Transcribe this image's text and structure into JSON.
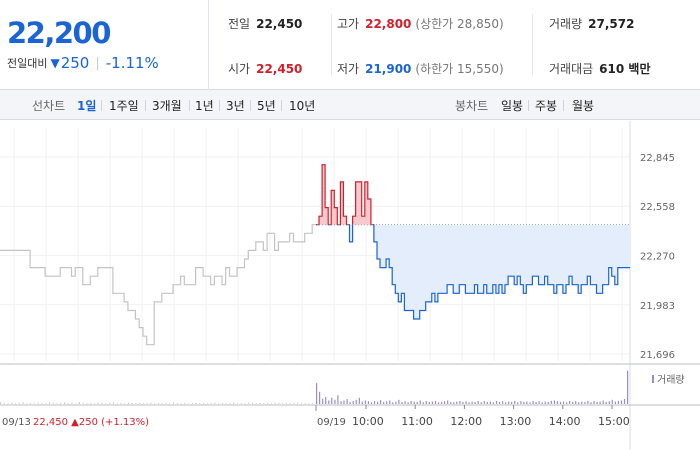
{
  "quote": {
    "price": "22,200",
    "change_label": "전일대비",
    "change_arrow": "▼",
    "change_value": "250",
    "change_pct": "-1.11%",
    "prev_close": {
      "label": "전일",
      "value": "22,450"
    },
    "high": {
      "label": "고가",
      "value": "22,800",
      "limit_note": "(상한가 28,850)"
    },
    "volume": {
      "label": "거래량",
      "value": "27,572"
    },
    "open": {
      "label": "시가",
      "value": "22,450"
    },
    "low": {
      "label": "저가",
      "value": "21,900",
      "limit_note": "(하한가 15,550)"
    },
    "amount": {
      "label": "거래대금",
      "value": "610 백만"
    }
  },
  "tabs": {
    "line_label": "선차트",
    "line_items": [
      "1일",
      "1주일",
      "3개월",
      "1년",
      "3년",
      "5년",
      "10년"
    ],
    "active_line": "1일",
    "candle_label": "봉차트",
    "candle_items": [
      "일봉",
      "주봉",
      "월봉"
    ]
  },
  "chart_data": {
    "type": "line",
    "y_ticks": [
      "22,845",
      "22,558",
      "22,270",
      "21,983",
      "21,696"
    ],
    "x_labels": [
      "10:00",
      "11:00",
      "12:00",
      "13:00",
      "14:00",
      "15:00"
    ],
    "prev_date_label": "09/13",
    "prev_info": {
      "price": "22,450",
      "arrow": "▲",
      "change": "250",
      "pct": "(+1.13%)"
    },
    "today_date_label": "09/19",
    "volume_legend": "거래량",
    "reference_line": 22450,
    "ylim": [
      21696,
      22845
    ],
    "previous_day_series": {
      "name": "09/13",
      "values": [
        22300,
        22300,
        22300,
        22300,
        22300,
        22300,
        22300,
        22300,
        22200,
        22200,
        22200,
        22200,
        22150,
        22150,
        22150,
        22150,
        22200,
        22200,
        22200,
        22150,
        22200,
        22200,
        22100,
        22100,
        22150,
        22150,
        22200,
        22200,
        22200,
        22200,
        22050,
        22050,
        22050,
        22000,
        21950,
        21950,
        21900,
        21850,
        21800,
        21750,
        21750,
        22000,
        22000,
        22050,
        22050,
        22050,
        22100,
        22100,
        22150,
        22100,
        22100,
        22100,
        22200,
        22200,
        22150,
        22150,
        22100,
        22150,
        22150,
        22100,
        22200,
        22150,
        22150,
        22200,
        22200,
        22250,
        22300,
        22300,
        22350,
        22350,
        22300,
        22400,
        22400,
        22300,
        22350,
        22350,
        22350,
        22400,
        22350,
        22350,
        22350,
        22400,
        22400,
        22450
      ]
    },
    "today_series": {
      "name": "09/19",
      "values": [
        22450,
        22500,
        22800,
        22550,
        22450,
        22650,
        22550,
        22450,
        22700,
        22500,
        22450,
        22350,
        22500,
        22700,
        22700,
        22500,
        22700,
        22600,
        22450,
        22350,
        22250,
        22200,
        22200,
        22250,
        22200,
        22100,
        22050,
        22000,
        22050,
        21950,
        21950,
        21950,
        21900,
        21900,
        21950,
        21950,
        22000,
        22000,
        22050,
        22000,
        22050,
        22050,
        22050,
        22100,
        22100,
        22050,
        22050,
        22100,
        22100,
        22050,
        22050,
        22050,
        22100,
        22050,
        22050,
        22100,
        22050,
        22050,
        22100,
        22050,
        22100,
        22050,
        22100,
        22150,
        22150,
        22100,
        22150,
        22100,
        22050,
        22100,
        22100,
        22150,
        22150,
        22100,
        22100,
        22150,
        22100,
        22100,
        22050,
        22100,
        22100,
        22050,
        22100,
        22150,
        22100,
        22100,
        22050,
        22100,
        22100,
        22150,
        22100,
        22100,
        22050,
        22050,
        22100,
        22100,
        22200,
        22150,
        22100,
        22200,
        22200,
        22200,
        22200
      ]
    },
    "volume": {
      "previous_day": [
        5,
        3,
        2,
        4,
        2,
        3,
        6,
        2,
        3,
        2,
        4,
        3,
        2,
        5,
        3,
        2,
        3,
        4,
        2,
        3,
        2,
        6,
        3,
        2,
        3,
        2,
        4,
        3,
        2,
        3,
        5,
        2,
        3,
        2,
        4,
        3,
        2,
        3,
        2,
        3,
        4,
        2,
        3,
        2,
        3,
        2,
        4,
        3,
        2,
        3,
        2,
        3,
        4,
        2,
        3,
        2,
        3,
        4,
        2,
        3,
        2,
        3,
        5,
        2,
        3,
        2,
        4,
        3,
        2,
        3,
        2,
        3,
        2,
        4,
        3,
        2,
        3,
        2,
        3,
        4,
        2,
        3,
        2,
        3
      ],
      "today": [
        60,
        35,
        15,
        20,
        10,
        18,
        12,
        25,
        8,
        10,
        14,
        6,
        9,
        12,
        18,
        7,
        10,
        8,
        5,
        9,
        7,
        11,
        6,
        8,
        10,
        5,
        7,
        12,
        6,
        8,
        5,
        9,
        7,
        6,
        10,
        5,
        8,
        6,
        7,
        9,
        5,
        6,
        8,
        10,
        6,
        5,
        7,
        9,
        6,
        8,
        5,
        7,
        6,
        9,
        5,
        8,
        6,
        7,
        5,
        9,
        6,
        8,
        5,
        7,
        6,
        9,
        5,
        8,
        6,
        7,
        5,
        9,
        6,
        8,
        5,
        7,
        6,
        9,
        10,
        8,
        6,
        7,
        5,
        9,
        6,
        8,
        5,
        7,
        6,
        9,
        5,
        8,
        6,
        7,
        10,
        6,
        8,
        12,
        7,
        9,
        10,
        14,
        95
      ]
    }
  },
  "colors": {
    "rise": "#d21f2b",
    "fall": "#1a64d6",
    "fill": "#e3edfb",
    "previous_line": "#c4c4c4",
    "volume_bar": "#9a8cc9"
  }
}
